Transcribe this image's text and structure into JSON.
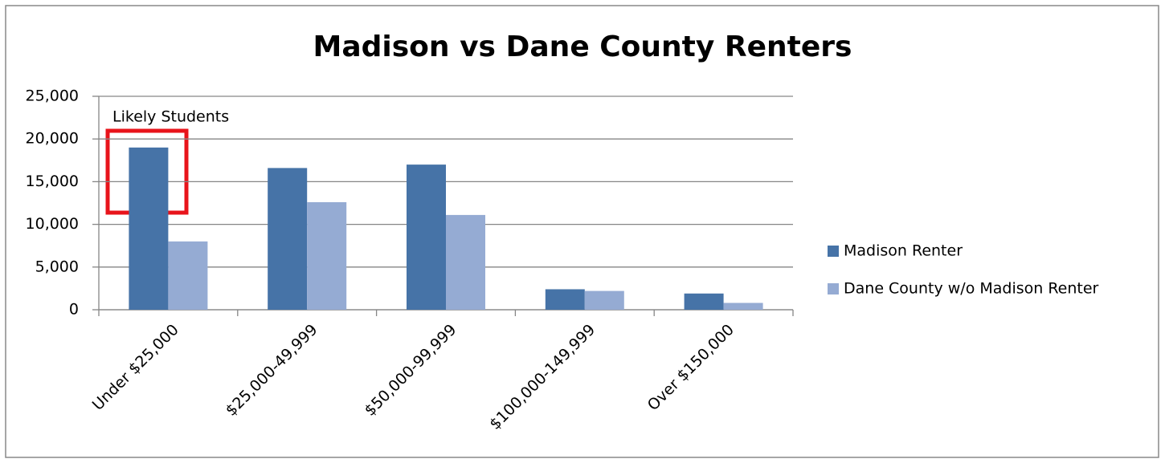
{
  "chart_data": {
    "type": "bar",
    "title": "Madison vs Dane County Renters",
    "categories": [
      "Under $25,000",
      "$25,000-49,999",
      "$50,000-99,999",
      "$100,000-149,999",
      "Over $150,000"
    ],
    "series": [
      {
        "name": "Madison Renter",
        "color": "#4673a7",
        "values": [
          19000,
          16600,
          17000,
          2400,
          1900
        ]
      },
      {
        "name": "Dane County w/o Madison Renter",
        "color": "#95abd3",
        "values": [
          8000,
          12600,
          11100,
          2200,
          800
        ]
      }
    ],
    "ylim": [
      0,
      25000
    ],
    "yticks": [
      0,
      {
        "value": 5000,
        "label": "5,000"
      },
      {
        "value": 10000,
        "label": "10,000"
      },
      {
        "value": 15000,
        "label": "15,000"
      },
      {
        "value": 20000,
        "label": "20,000"
      },
      {
        "value": 25000,
        "label": "25,000"
      }
    ],
    "grid": true,
    "legend": "right",
    "annotation": "Likely Students"
  }
}
